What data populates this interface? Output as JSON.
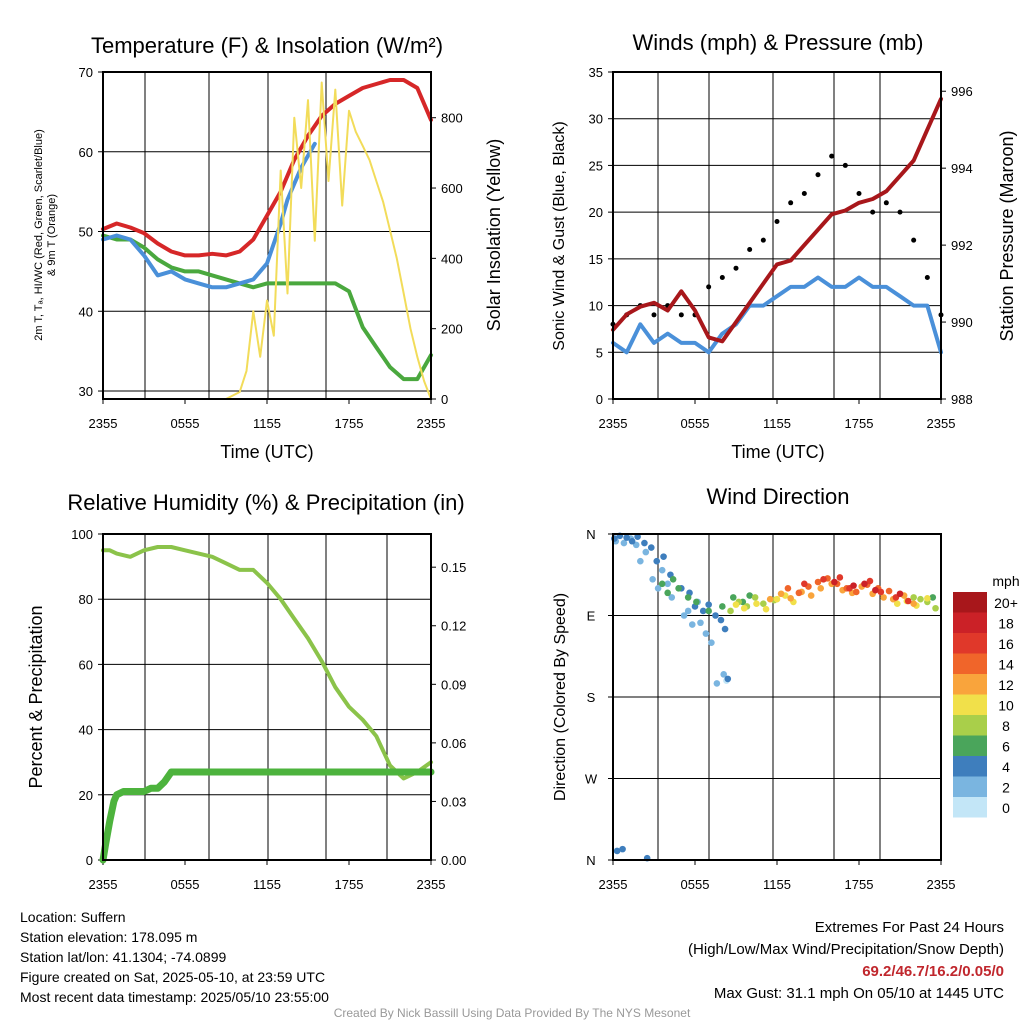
{
  "panels": {
    "temp": {
      "title": "Temperature (F) & Insolation (W/m²)",
      "xlabel": "Time (UTC)",
      "ylabel_line1": "2m T, Tₐ, HI/WC (Red, Green, Scarlet/Blue)",
      "ylabel_line2": "& 9m T (Orange)",
      "ylabel_right": "Solar Insolation (Yellow)"
    },
    "wind": {
      "title": "Winds (mph) & Pressure (mb)",
      "xlabel": "Time (UTC)",
      "ylabel": "Sonic Wind & Gust (Blue, Black)",
      "ylabel_right": "Station Pressure (Maroon)"
    },
    "rh": {
      "title": "Relative Humidity (%) & Precipitation (in)",
      "ylabel": "Percent & Precipitation"
    },
    "dir": {
      "title": "Wind Direction",
      "ylabel": "Direction (Colored By Speed)",
      "legend_title": "mph",
      "legend_labels": [
        "20+",
        "18",
        "16",
        "14",
        "12",
        "10",
        "8",
        "6",
        "4",
        "2",
        "0"
      ],
      "legend_colors": [
        "#a8171b",
        "#cb2127",
        "#e0382a",
        "#f0652a",
        "#f9a43c",
        "#f1e04a",
        "#a9cf4a",
        "#4aa55b",
        "#3e7ebd",
        "#7ab5e0",
        "#c3e6f7"
      ]
    }
  },
  "chart_data": [
    {
      "type": "line",
      "title": "Temperature (F) & Insolation (W/m²)",
      "xlabel": "Time (UTC)",
      "x_ticks": [
        "2355",
        "0555",
        "1155",
        "1755",
        "2355"
      ],
      "ylim": [
        29,
        70
      ],
      "y_ticks": [
        30,
        40,
        50,
        60,
        70
      ],
      "y2lim": [
        0,
        930
      ],
      "y2_ticks": [
        0,
        200,
        400,
        600,
        800
      ],
      "grid": true,
      "series": [
        {
          "color": "#d62728",
          "axis": "left",
          "x": [
            0,
            1,
            2,
            3,
            4,
            5,
            6,
            7,
            8,
            9,
            10,
            11,
            12,
            13,
            14,
            15,
            16,
            17,
            18,
            19,
            20,
            21,
            22,
            23,
            24
          ],
          "values": [
            50.3,
            51,
            50.5,
            49.8,
            48.5,
            47.5,
            47,
            47,
            47.2,
            47,
            47.5,
            49,
            52,
            55,
            59,
            62,
            64.5,
            66,
            67,
            68,
            68.5,
            69,
            69,
            68,
            64
          ]
        },
        {
          "color": "#4aa83e",
          "axis": "left",
          "x": [
            0,
            1,
            2,
            3,
            4,
            5,
            6,
            7,
            8,
            9,
            10,
            11,
            12,
            13,
            14,
            15,
            16,
            17,
            18,
            19,
            20,
            21,
            22,
            23,
            24
          ],
          "values": [
            49.5,
            49,
            49,
            48,
            46.5,
            45.5,
            45,
            45,
            44.5,
            44,
            43.5,
            43,
            43.5,
            43.5,
            43.5,
            43.5,
            43.5,
            43.5,
            42.5,
            38,
            35.5,
            33,
            31.5,
            31.5,
            34.5
          ]
        },
        {
          "color": "#4a90d9",
          "axis": "left",
          "x": [
            0,
            1,
            2,
            3,
            4,
            5,
            6,
            7,
            8,
            9,
            10,
            11,
            12,
            12.5,
            13,
            13.5,
            14,
            14.5,
            15,
            15.5
          ],
          "values": [
            49,
            49.5,
            49,
            47,
            44.5,
            45,
            44,
            43.5,
            43,
            43,
            43.5,
            44,
            46,
            48.5,
            51,
            54,
            56,
            58,
            59.5,
            61
          ]
        },
        {
          "color": "#f2dc5a",
          "axis": "right",
          "x": [
            0,
            1,
            2,
            3,
            4,
            5,
            6,
            7,
            8,
            9,
            10,
            10.5,
            11,
            11.5,
            12,
            12.5,
            13,
            13.5,
            14,
            14.5,
            15,
            15.5,
            16,
            16.5,
            17,
            17.5,
            18,
            18.5,
            19,
            19.5,
            20,
            20.5,
            21,
            21.5,
            22,
            22.5,
            23,
            23.5,
            24
          ],
          "values": [
            0,
            0,
            0,
            0,
            0,
            0,
            0,
            0,
            0,
            0,
            20,
            80,
            250,
            120,
            280,
            180,
            650,
            300,
            800,
            600,
            850,
            450,
            900,
            620,
            880,
            550,
            820,
            760,
            720,
            680,
            620,
            560,
            480,
            400,
            300,
            200,
            120,
            50,
            0
          ]
        }
      ]
    },
    {
      "type": "line",
      "title": "Winds (mph) & Pressure (mb)",
      "xlabel": "Time (UTC)",
      "ylabel": "Sonic Wind & Gust (Blue, Black)",
      "x_ticks": [
        "2355",
        "0555",
        "1155",
        "1755",
        "2355"
      ],
      "ylim": [
        0,
        35
      ],
      "y_ticks": [
        0,
        5,
        10,
        15,
        20,
        25,
        30,
        35
      ],
      "y2lim": [
        988,
        996.5
      ],
      "y2_ticks": [
        988,
        990,
        992,
        994,
        996
      ],
      "grid": true,
      "series": [
        {
          "color": "#4a90d9",
          "axis": "left",
          "x": [
            0,
            1,
            2,
            3,
            4,
            5,
            6,
            7,
            8,
            9,
            10,
            11,
            12,
            13,
            14,
            15,
            16,
            17,
            18,
            19,
            20,
            21,
            22,
            23,
            24
          ],
          "values": [
            6,
            5,
            8,
            6,
            7,
            6,
            6,
            5,
            7,
            8,
            10,
            10,
            11,
            12,
            12,
            13,
            12,
            12,
            13,
            12,
            12,
            11,
            10,
            10,
            5
          ]
        },
        {
          "color": "#000000",
          "axis": "left",
          "x": [
            0,
            1,
            2,
            3,
            4,
            5,
            6,
            7,
            8,
            9,
            10,
            11,
            12,
            13,
            14,
            15,
            16,
            17,
            18,
            19,
            20,
            21,
            22,
            23,
            24
          ],
          "values": [
            8,
            9,
            10,
            9,
            10,
            9,
            9,
            12,
            13,
            14,
            16,
            17,
            19,
            21,
            22,
            24,
            26,
            25,
            22,
            20,
            21,
            20,
            17,
            13,
            9
          ]
        },
        {
          "color": "#a8171b",
          "axis": "right",
          "x": [
            0,
            1,
            2,
            3,
            4,
            5,
            6,
            7,
            8,
            9,
            10,
            11,
            12,
            13,
            14,
            15,
            16,
            17,
            18,
            19,
            20,
            21,
            22,
            23,
            24
          ],
          "values": [
            989.8,
            990.2,
            990.4,
            990.5,
            990.3,
            990.8,
            990.3,
            989.6,
            989.5,
            990,
            990.5,
            991,
            991.5,
            991.6,
            992,
            992.4,
            992.8,
            992.9,
            993.1,
            993.2,
            993.4,
            993.8,
            994.2,
            995,
            995.8
          ]
        }
      ]
    },
    {
      "type": "line",
      "title": "Relative Humidity (%) & Precipitation (in)",
      "ylabel": "Percent & Precipitation",
      "x_ticks": [
        "2355",
        "0555",
        "1155",
        "1755",
        "2355"
      ],
      "ylim": [
        0,
        100
      ],
      "y_ticks": [
        0,
        20,
        40,
        60,
        80,
        100
      ],
      "y2lim": [
        0,
        0.167
      ],
      "y2_ticks": [
        0.0,
        0.03,
        0.06,
        0.09,
        0.12,
        0.15
      ],
      "grid": true,
      "series": [
        {
          "color": "#8bc34a",
          "axis": "left",
          "x": [
            0,
            0.5,
            1,
            2,
            3,
            4,
            5,
            6,
            7,
            8,
            9,
            10,
            11,
            12,
            13,
            14,
            15,
            16,
            17,
            18,
            19,
            20,
            21,
            22,
            23,
            24
          ],
          "values": [
            95,
            95,
            94,
            93,
            95,
            96,
            96,
            95,
            94,
            93,
            91,
            89,
            89,
            85,
            80,
            74,
            68,
            61,
            53,
            47,
            43,
            38,
            29,
            25,
            27,
            30
          ]
        },
        {
          "color": "#4db33d",
          "axis": "left",
          "x": [
            0,
            0.2,
            0.5,
            0.8,
            1,
            1.5,
            2,
            3,
            3.5,
            4,
            4.5,
            5,
            6,
            10,
            15,
            20,
            24
          ],
          "values": [
            0,
            5,
            12,
            18,
            20,
            21,
            21,
            21,
            22,
            22,
            24,
            27,
            27,
            27,
            27,
            27,
            27
          ]
        }
      ]
    },
    {
      "type": "scatter",
      "title": "Wind Direction",
      "ylabel": "Direction (Colored By Speed)",
      "x_ticks": [
        "2355",
        "0555",
        "1155",
        "1755",
        "2355"
      ],
      "y_ticks": [
        "N",
        "W",
        "S",
        "E",
        "N"
      ],
      "ylim": [
        0,
        360
      ],
      "grid": true,
      "legend": "right",
      "series": [
        {
          "name": "0",
          "color": "#c3e6f7",
          "x": [
            8.3
          ],
          "values": [
            198
          ]
        },
        {
          "name": "2",
          "color": "#7ab5e0",
          "x": [
            0.2,
            0.8,
            1.3,
            1.7,
            2,
            2.4,
            2.9,
            3.3,
            3.6,
            4,
            4.3,
            5.2,
            5.5,
            5.8,
            6.2,
            6.4,
            6.8,
            7.2,
            7.6,
            8.1
          ],
          "values": [
            352,
            350,
            355,
            348,
            330,
            340,
            310,
            300,
            320,
            305,
            290,
            270,
            275,
            260,
            285,
            262,
            250,
            240,
            195,
            205
          ]
        },
        {
          "name": "4",
          "color": "#3e7ebd",
          "x": [
            0.1,
            0.5,
            1,
            1.4,
            1.8,
            2.3,
            2.8,
            3.2,
            3.7,
            4.2,
            5,
            5.6,
            6,
            6.6,
            7,
            7.5,
            7.9,
            8.2,
            8.4,
            0.3,
            0.7,
            2.5
          ],
          "values": [
            355,
            358,
            356,
            352,
            357,
            350,
            345,
            330,
            335,
            315,
            300,
            295,
            280,
            275,
            282,
            270,
            265,
            255,
            200,
            10,
            12,
            2
          ]
        },
        {
          "name": "6",
          "color": "#4aa55b",
          "x": [
            3.6,
            4,
            4.4,
            4.8,
            5.5,
            6.1,
            7,
            8,
            8.8,
            9.5,
            10,
            23.4
          ],
          "values": [
            305,
            295,
            310,
            300,
            290,
            285,
            275,
            280,
            290,
            285,
            292,
            290
          ]
        },
        {
          "name": "8",
          "color": "#a9cf4a",
          "x": [
            8.6,
            9.2,
            9.8,
            10.4,
            11,
            11.8,
            22,
            22.5,
            23,
            23.6
          ],
          "values": [
            275,
            285,
            280,
            290,
            283,
            287,
            290,
            288,
            285,
            278
          ]
        },
        {
          "name": "10",
          "color": "#f1e04a",
          "x": [
            9,
            9.6,
            10.5,
            11.2,
            12,
            12.6,
            13.2,
            20.8,
            21.5,
            22.2,
            23
          ],
          "values": [
            282,
            278,
            283,
            277,
            288,
            292,
            285,
            283,
            286,
            281,
            289
          ]
        },
        {
          "name": "12",
          "color": "#f9a43c",
          "x": [
            11.5,
            12.3,
            13,
            13.8,
            14.5,
            15.2,
            16,
            16.8,
            17.5,
            18.2,
            19,
            19.8,
            20.5,
            21.3,
            22
          ],
          "values": [
            288,
            294,
            289,
            296,
            292,
            300,
            305,
            298,
            295,
            302,
            294,
            290,
            288,
            292,
            283
          ]
        },
        {
          "name": "14",
          "color": "#f0652a",
          "x": [
            12.8,
            13.6,
            14.3,
            15,
            15.7,
            16.4,
            17.1,
            17.8,
            18.6,
            19.4,
            20.2
          ],
          "values": [
            300,
            295,
            302,
            307,
            311,
            305,
            300,
            296,
            304,
            300,
            297
          ]
        },
        {
          "name": "16",
          "color": "#e0382a",
          "x": [
            14,
            15.4,
            16.6,
            17.3,
            18.8,
            19.6,
            20.7,
            21.6
          ],
          "values": [
            305,
            310,
            312,
            300,
            308,
            296,
            290,
            286
          ]
        },
        {
          "name": "18",
          "color": "#cb2127",
          "x": [
            16.2,
            17.6,
            18.4,
            19.2,
            21
          ],
          "values": [
            307,
            303,
            305,
            298,
            294
          ]
        }
      ]
    }
  ],
  "footer": {
    "location": "Location: Suffern",
    "elevation": "Station elevation: 178.095 m",
    "latlon": "Station lat/lon: 41.1304; -74.0899",
    "created": "Figure created on Sat, 2025-05-10, at 23:59 UTC",
    "recent": "Most recent data timestamp: 2025/05/10 23:55:00",
    "extremes_title": "Extremes For Past 24 Hours",
    "extremes_legend": "(High/Low/Max Wind/Precipitation/Snow Depth)",
    "extremes_values": "69.2/46.7/16.2/0.05/0",
    "max_gust": "Max Gust: 31.1 mph On 05/10 at 1445 UTC",
    "credit": "Created By Nick Bassill Using Data Provided By The NYS Mesonet"
  }
}
